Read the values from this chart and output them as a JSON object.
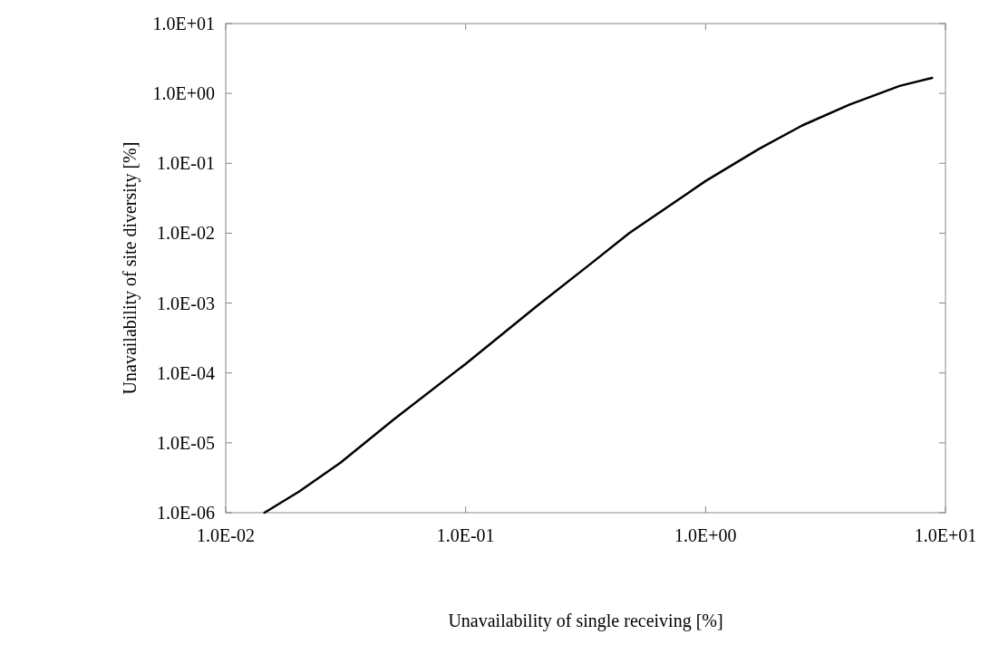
{
  "chart_data": {
    "type": "line",
    "xlabel": "Unavailability of single receiving [%]",
    "ylabel": "Unavailability of site diversity [%]",
    "log": "xy",
    "grid": false,
    "marker": "none",
    "line_style": "solid",
    "xlim": [
      0.01,
      10
    ],
    "ylim": [
      1e-06,
      10
    ],
    "xticks": [
      {
        "value": 0.01,
        "label": "1.0E-02"
      },
      {
        "value": 0.1,
        "label": "1.0E-01"
      },
      {
        "value": 1,
        "label": "1.0E+00"
      },
      {
        "value": 10,
        "label": "1.0E+01"
      }
    ],
    "yticks": [
      {
        "value": 1e-06,
        "label": "1.0E-06"
      },
      {
        "value": 1e-05,
        "label": "1.0E-05"
      },
      {
        "value": 0.0001,
        "label": "1.0E-04"
      },
      {
        "value": 0.001,
        "label": "1.0E-03"
      },
      {
        "value": 0.01,
        "label": "1.0E-02"
      },
      {
        "value": 0.1,
        "label": "1.0E-01"
      },
      {
        "value": 1,
        "label": "1.0E+00"
      },
      {
        "value": 10,
        "label": "1.0E+01"
      }
    ],
    "x": [
      0.0145,
      0.0202,
      0.0301,
      0.0502,
      0.1,
      0.2,
      0.326,
      0.48,
      1,
      1.67,
      2.53,
      3.97,
      6.44,
      8.8
    ],
    "series": [
      {
        "color": "#000000",
        "values": [
          1e-06,
          2e-06,
          5.2e-06,
          2.16e-05,
          0.000135,
          0.00093,
          0.00347,
          0.01,
          0.0557,
          0.161,
          0.348,
          0.69,
          1.28,
          1.67
        ]
      }
    ]
  }
}
